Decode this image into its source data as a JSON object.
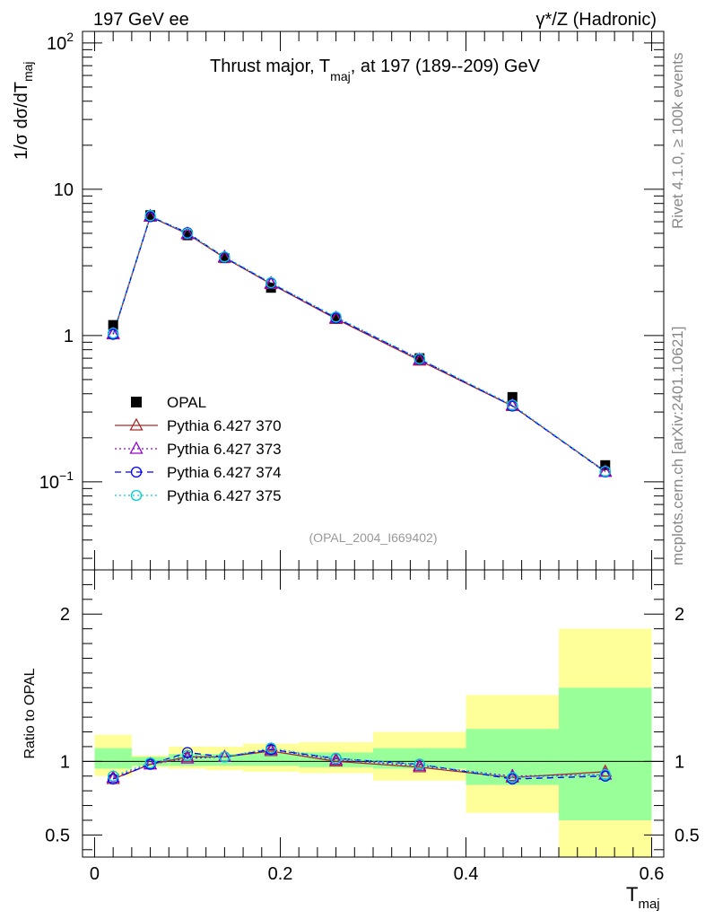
{
  "header": {
    "left": "197 GeV ee",
    "right": "γ*/Z (Hadronic)"
  },
  "side_text": {
    "rivet": "Rivet 4.1.0, ≥ 100k events",
    "site": "mcplots.cern.ch [arXiv:2401.10621]"
  },
  "chart_data": [
    {
      "type": "line",
      "title_main": "Thrust major, T",
      "title_sub": "maj",
      "title_tail": ", at 197 (189--209) GeV",
      "ylabel": "1/σ  dσ/dT",
      "ylabel_sub": "maj",
      "yscale": "log",
      "ylim": [
        0.025,
        120
      ],
      "xlim": [
        -0.013,
        0.613
      ],
      "yticks": [
        {
          "value": 100,
          "base": "10",
          "exp": "2"
        },
        {
          "value": 10,
          "base": "10",
          "exp": ""
        },
        {
          "value": 1,
          "base": "1",
          "exp": ""
        },
        {
          "value": 0.1,
          "base": "10",
          "exp": "−1"
        }
      ],
      "watermark": "(OPAL_2004_I669402)",
      "legend_position": "lower-left",
      "x": [
        0.02,
        0.06,
        0.1,
        0.14,
        0.19,
        0.26,
        0.35,
        0.45,
        0.55
      ],
      "bin_edges": [
        0.0,
        0.04,
        0.08,
        0.12,
        0.16,
        0.22,
        0.3,
        0.4,
        0.5,
        0.6
      ],
      "data": {
        "name": "OPAL",
        "values": [
          1.18,
          6.65,
          4.85,
          3.38,
          2.12,
          1.3,
          0.7,
          0.38,
          0.13
        ]
      },
      "series": [
        {
          "name": "Pythia 6.427 370",
          "color": "#a52a2a",
          "dash": "",
          "marker": "triangle",
          "values": [
            1.02,
            6.5,
            4.95,
            3.4,
            2.25,
            1.3,
            0.675,
            0.33,
            0.118
          ]
        },
        {
          "name": "Pythia 6.427 373",
          "color": "#9400d3",
          "dash": "2,3",
          "marker": "triangle",
          "values": [
            1.03,
            6.55,
            4.95,
            3.45,
            2.28,
            1.32,
            0.685,
            0.335,
            0.117
          ]
        },
        {
          "name": "Pythia 6.427 374",
          "color": "#0000ff",
          "dash": "7,5",
          "marker": "circle",
          "values": [
            1.02,
            6.5,
            5.05,
            3.42,
            2.28,
            1.32,
            0.69,
            0.33,
            0.117
          ]
        },
        {
          "name": "Pythia 6.427 375",
          "color": "#00cdcd",
          "dash": "2,3",
          "marker": "circle",
          "values": [
            1.04,
            6.6,
            5.0,
            3.45,
            2.3,
            1.34,
            0.695,
            0.335,
            0.118
          ]
        }
      ]
    },
    {
      "type": "line",
      "ylabel": "Ratio to OPAL",
      "xlabel": "T",
      "xlabel_sub": "maj",
      "ylim": [
        0.35,
        2.3
      ],
      "xlim": [
        -0.013,
        0.613
      ],
      "yticks": [
        0.5,
        1,
        2
      ],
      "ytick_labels": [
        "0.5",
        "1",
        "2"
      ],
      "xticks": [
        0,
        0.2,
        0.4,
        0.6
      ],
      "xtick_labels": [
        "0",
        "0.2",
        "0.4",
        "0.6"
      ],
      "reference": 1,
      "bands": [
        {
          "x0": 0.0,
          "x1": 0.04,
          "inner": [
            0.95,
            1.09
          ],
          "outer": [
            0.9,
            1.18
          ]
        },
        {
          "x0": 0.04,
          "x1": 0.08,
          "inner": [
            0.97,
            1.03
          ],
          "outer": [
            0.96,
            1.04
          ]
        },
        {
          "x0": 0.08,
          "x1": 0.12,
          "inner": [
            0.97,
            1.05
          ],
          "outer": [
            0.95,
            1.1
          ]
        },
        {
          "x0": 0.12,
          "x1": 0.16,
          "inner": [
            0.97,
            1.05
          ],
          "outer": [
            0.94,
            1.1
          ]
        },
        {
          "x0": 0.16,
          "x1": 0.22,
          "inner": [
            0.97,
            1.06
          ],
          "outer": [
            0.93,
            1.12
          ]
        },
        {
          "x0": 0.22,
          "x1": 0.3,
          "inner": [
            0.96,
            1.06
          ],
          "outer": [
            0.92,
            1.13
          ]
        },
        {
          "x0": 0.3,
          "x1": 0.4,
          "inner": [
            0.95,
            1.09
          ],
          "outer": [
            0.87,
            1.2
          ]
        },
        {
          "x0": 0.4,
          "x1": 0.5,
          "inner": [
            0.84,
            1.22
          ],
          "outer": [
            0.65,
            1.45
          ]
        },
        {
          "x0": 0.5,
          "x1": 0.6,
          "inner": [
            0.6,
            1.5
          ],
          "outer": [
            0.35,
            1.9
          ]
        }
      ],
      "series": [
        {
          "name": "Pythia 6.427 370",
          "values": [
            0.88,
            0.98,
            1.03,
            1.03,
            1.07,
            1.0,
            0.96,
            0.89,
            0.93
          ]
        },
        {
          "name": "Pythia 6.427 373",
          "values": [
            0.89,
            0.98,
            1.02,
            1.03,
            1.08,
            1.01,
            0.97,
            0.9,
            0.91
          ]
        },
        {
          "name": "Pythia 6.427 374",
          "values": [
            0.88,
            0.98,
            1.06,
            1.03,
            1.08,
            1.02,
            0.98,
            0.88,
            0.9
          ]
        },
        {
          "name": "Pythia 6.427 375",
          "values": [
            0.9,
            0.99,
            1.04,
            1.03,
            1.09,
            1.02,
            0.98,
            0.89,
            0.91
          ]
        }
      ]
    }
  ]
}
